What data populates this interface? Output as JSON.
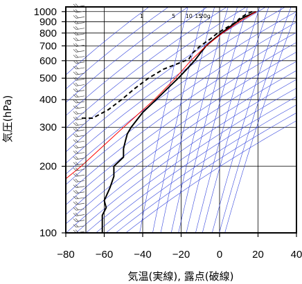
{
  "chart_data": {
    "type": "line",
    "diagram": "emagram",
    "xlabel": "気温(実線), 露点(破線)",
    "ylabel": "気圧(hPa)",
    "x_range": [
      -80,
      40
    ],
    "y_range_hpa": [
      1050,
      100
    ],
    "y_scale": "log",
    "x_ticks": [
      -80,
      -60,
      -40,
      -20,
      0,
      20,
      40
    ],
    "x_tick_labels": [
      "−80",
      "−60",
      "−40",
      "−20",
      "0",
      "20",
      "40"
    ],
    "y_ticks": [
      1000,
      900,
      800,
      700,
      600,
      500,
      400,
      300,
      200,
      100
    ],
    "y_tick_labels": [
      "1000",
      "900",
      "800",
      "700",
      "600",
      "500",
      "400",
      "300",
      "200",
      "100"
    ],
    "mixing_ratio_labels": [
      {
        "label": "1",
        "value": 1
      },
      {
        "label": "5",
        "value": 5
      },
      {
        "label": "10",
        "value": 10
      },
      {
        "label": "15",
        "value": 15
      },
      {
        "label": "20g",
        "value": 20
      }
    ],
    "series": [
      {
        "role": "temperature",
        "style": "solid",
        "points": [
          [
            1000,
            19
          ],
          [
            975,
            16.5
          ],
          [
            950,
            13.5
          ],
          [
            925,
            11
          ],
          [
            900,
            9
          ],
          [
            850,
            5
          ],
          [
            800,
            1
          ],
          [
            750,
            -3
          ],
          [
            700,
            -7
          ],
          [
            650,
            -10
          ],
          [
            600,
            -13
          ],
          [
            550,
            -17
          ],
          [
            500,
            -21.5
          ],
          [
            450,
            -27
          ],
          [
            400,
            -33
          ],
          [
            350,
            -40
          ],
          [
            300,
            -46
          ],
          [
            280,
            -48
          ],
          [
            260,
            -49
          ],
          [
            240,
            -50
          ],
          [
            220,
            -50
          ],
          [
            200,
            -55
          ],
          [
            180,
            -55
          ],
          [
            160,
            -57
          ],
          [
            140,
            -60
          ],
          [
            130,
            -59
          ],
          [
            120,
            -61
          ],
          [
            110,
            -61
          ],
          [
            100,
            -61
          ]
        ]
      },
      {
        "role": "dewpoint",
        "style": "dashed",
        "points": [
          [
            1000,
            17
          ],
          [
            975,
            14
          ],
          [
            950,
            12
          ],
          [
            925,
            10
          ],
          [
            900,
            9
          ],
          [
            850,
            4
          ],
          [
            800,
            -1
          ],
          [
            750,
            -5
          ],
          [
            700,
            -10
          ],
          [
            650,
            -14
          ],
          [
            610,
            -16
          ],
          [
            590,
            -20
          ],
          [
            550,
            -29
          ],
          [
            500,
            -37
          ],
          [
            450,
            -44
          ],
          [
            400,
            -51
          ],
          [
            360,
            -58
          ],
          [
            330,
            -66
          ],
          [
            330,
            -72
          ]
        ]
      },
      {
        "role": "parcel",
        "style": "solid",
        "color": "#ff0000",
        "points": [
          [
            1000,
            19
          ],
          [
            900,
            10.3
          ],
          [
            800,
            1.5
          ],
          [
            700,
            -7
          ],
          [
            600,
            -15
          ],
          [
            500,
            -23
          ],
          [
            400,
            -34
          ],
          [
            300,
            -50
          ],
          [
            200,
            -72
          ],
          [
            170,
            -82
          ]
        ]
      }
    ],
    "wind_barbs": "left column, 100–1000 hPa",
    "grid": true,
    "colors": {
      "background_lines": "#3344dd",
      "temperature": "#000000",
      "dewpoint": "#000000",
      "parcel": "#ff0000"
    }
  }
}
